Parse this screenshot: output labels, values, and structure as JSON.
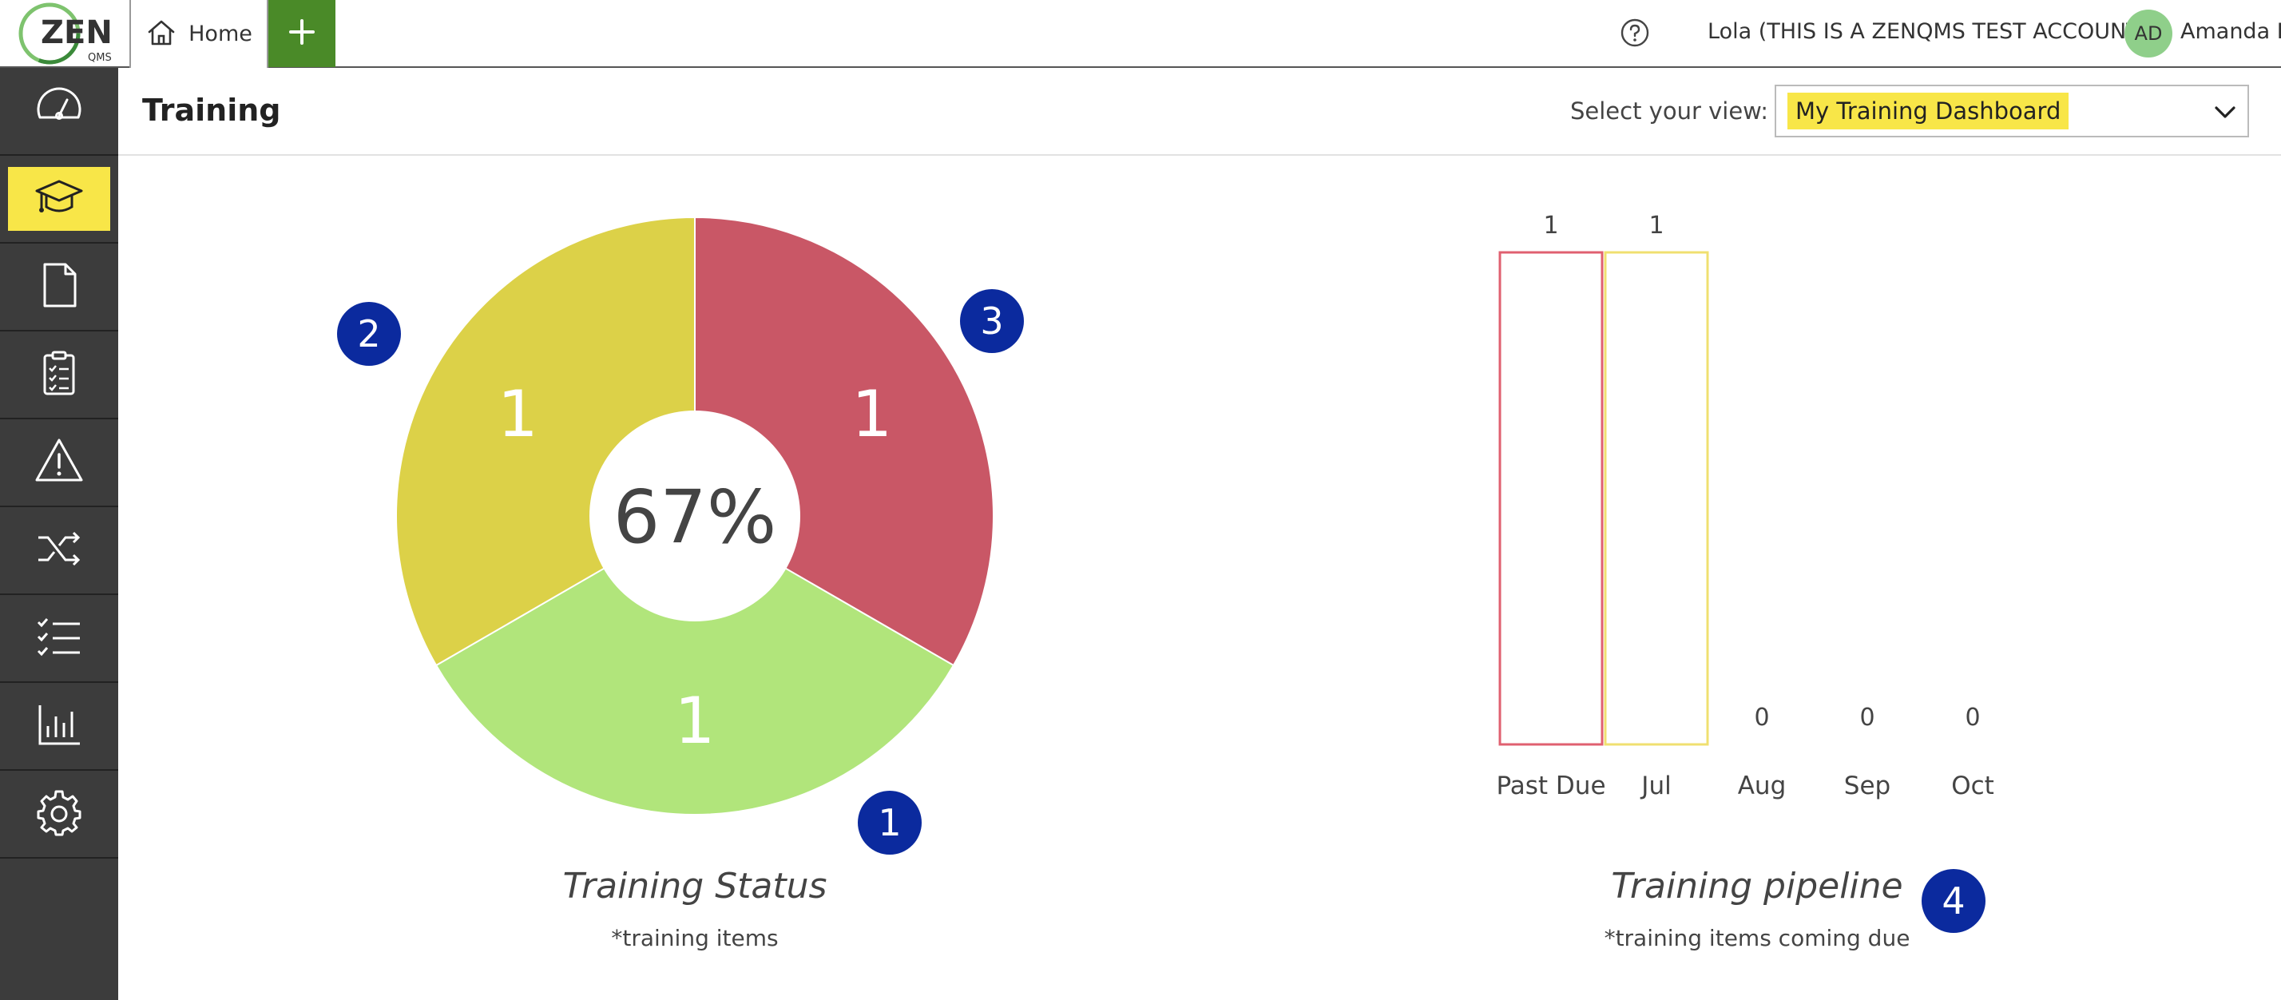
{
  "app": {
    "logo_text": "ZEN",
    "logo_subtext": "QMS"
  },
  "tabs": {
    "home_label": "Home",
    "add_icon": "plus-icon"
  },
  "account": {
    "help_icon": "help-icon",
    "account_text": "Lola (THIS IS A ZENQMS TEST ACCOUNT)",
    "avatar_initials": "AD",
    "user_name": "Amanda D"
  },
  "sidebar": {
    "items": [
      {
        "icon": "dashboard-gauge-icon",
        "active": false
      },
      {
        "icon": "graduation-cap-icon",
        "active": true
      },
      {
        "icon": "document-icon",
        "active": false
      },
      {
        "icon": "clipboard-checklist-icon",
        "active": false
      },
      {
        "icon": "warning-triangle-icon",
        "active": false
      },
      {
        "icon": "shuffle-icon",
        "active": false
      },
      {
        "icon": "checklist-icon",
        "active": false
      },
      {
        "icon": "bar-chart-icon",
        "active": false
      },
      {
        "icon": "gear-icon",
        "active": false
      }
    ],
    "highlight_color": "#f8e648"
  },
  "page": {
    "title": "Training",
    "view_label": "Select your view:",
    "view_value": "My Training Dashboard"
  },
  "badges": [
    "1",
    "2",
    "3",
    "4"
  ],
  "chart_data": [
    {
      "type": "pie",
      "variant": "donut",
      "title": "Training Status",
      "subtitle": "*training items",
      "center_label": "67%",
      "slices": [
        {
          "value": 1,
          "label": "1",
          "color": "#dcd148"
        },
        {
          "value": 1,
          "label": "1",
          "color": "#c95766"
        },
        {
          "value": 1,
          "label": "1",
          "color": "#b1e57b"
        }
      ]
    },
    {
      "type": "bar",
      "title": "Training pipeline",
      "subtitle": "*training items coming due",
      "categories": [
        "Past Due",
        "Jul",
        "Aug",
        "Sep",
        "Oct"
      ],
      "values": [
        1,
        1,
        0,
        0,
        0
      ],
      "bar_outline_colors": [
        "#e06070",
        "#f0e070",
        "#cccccc",
        "#cccccc",
        "#cccccc"
      ],
      "grid": false
    }
  ]
}
